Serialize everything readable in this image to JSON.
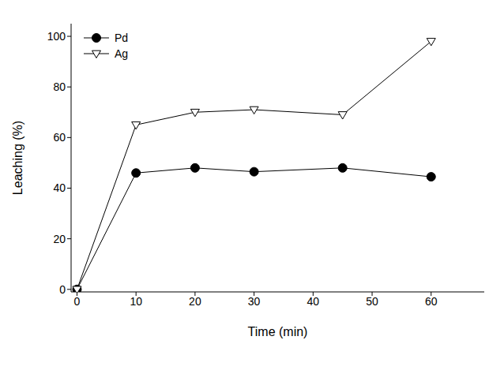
{
  "chart_data": {
    "type": "line",
    "x_label": "Time (min)",
    "y_label": "Leaching (%)",
    "x": [
      0,
      10,
      20,
      30,
      45,
      60
    ],
    "series": [
      {
        "name": "Pd",
        "color": "#000000",
        "marker": "circle",
        "values": [
          0,
          46,
          48,
          46.5,
          48,
          44.5
        ]
      },
      {
        "name": "Ag",
        "color": "#000000",
        "marker": "triangle-down",
        "values": [
          0,
          65,
          70,
          71,
          69,
          98
        ]
      }
    ],
    "xlim": [
      -1,
      69
    ],
    "xticks": [
      0,
      10,
      20,
      30,
      40,
      50,
      60
    ],
    "ylim": [
      -1,
      105
    ],
    "yticks": [
      0,
      20,
      40,
      60,
      80,
      100
    ],
    "grid": false,
    "legend": "upper left"
  }
}
